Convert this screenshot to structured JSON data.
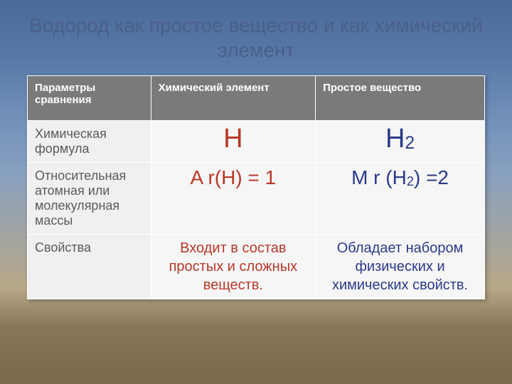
{
  "title": "Водород как простое вещество и как химический элемент",
  "table": {
    "headers": [
      "Параметры сравнения",
      "Химический элемент",
      "Простое вещество"
    ],
    "column_widths": [
      "27%",
      "36%",
      "37%"
    ],
    "header_bg": "#7a7a7a",
    "header_color": "#ffffff",
    "param_bg": "#f0f0f0",
    "value_bg": "#f6f6f6",
    "param_color": "#5a5a5a",
    "rows": [
      {
        "param": "Химическая формула",
        "element": {
          "main": "H",
          "sub": "",
          "color": "#b83828",
          "size": "big"
        },
        "substance": {
          "main": "H",
          "sub": "2",
          "color": "#2a3a88",
          "size": "big"
        }
      },
      {
        "param": "Относительная атомная или молекулярная массы",
        "element": {
          "main": "A r(H) = 1",
          "sub": "",
          "color": "#b83828",
          "size": "med"
        },
        "substance": {
          "main_a": "M r (H",
          "sub": "2",
          "main_b": ") =2",
          "color": "#2a3a88",
          "size": "med"
        }
      },
      {
        "param": "Свойства",
        "element": {
          "main": "Входит в состав простых и сложных веществ.",
          "color": "#b83828",
          "size": "sm"
        },
        "substance": {
          "main": "Обладает набором физических и химических свойств.",
          "color": "#2a3a88",
          "size": "sm"
        }
      }
    ]
  },
  "background": {
    "gradient_stops": [
      "#4a6a9a",
      "#5878a8",
      "#7090b8",
      "#88a0c0",
      "#b8a888",
      "#887858",
      "#7a6a4a"
    ]
  }
}
